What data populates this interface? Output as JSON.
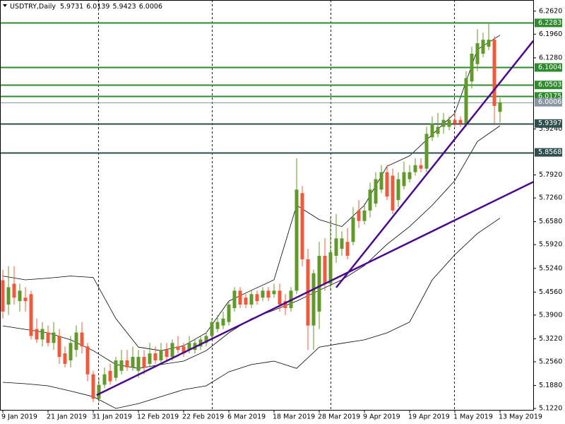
{
  "chart_data": {
    "type": "candlestick",
    "title": "USDTRY,Daily",
    "categories": [
      "9 Jan 2019",
      null,
      null,
      null,
      null,
      null,
      null,
      null,
      "21 Jan 2019",
      null,
      null,
      null,
      null,
      null,
      null,
      null,
      "31 Jan 2019",
      null,
      null,
      null,
      null,
      null,
      null,
      null,
      "12 Feb 2019",
      null,
      null,
      null,
      null,
      null,
      null,
      null,
      "22 Feb 2019",
      null,
      null,
      null,
      null,
      null,
      null,
      null,
      "6 Mar 2019",
      null,
      null,
      null,
      null,
      null,
      null,
      null,
      "18 Mar 2019",
      null,
      null,
      null,
      null,
      null,
      null,
      null,
      "28 Mar 2019",
      null,
      null,
      null,
      null,
      null,
      null,
      null,
      "9 Apr 2019",
      null,
      null,
      null,
      null,
      null,
      null,
      null,
      "19 Apr 2019",
      null,
      null,
      null,
      null,
      null,
      null,
      null,
      "1 May 2019",
      null,
      null,
      null,
      null,
      null,
      null,
      null,
      "13 May 2019"
    ],
    "open": [
      5.49,
      5.42,
      5.48,
      5.43,
      5.44,
      5.45,
      5.35,
      5.32,
      5.34,
      5.31,
      5.33,
      5.28,
      5.26,
      5.29,
      5.34,
      5.3,
      5.22,
      5.15,
      5.19,
      5.23,
      5.21,
      5.23,
      5.26,
      5.24,
      5.23,
      5.27,
      5.25,
      5.28,
      5.26,
      5.29,
      5.27,
      5.3,
      5.3,
      5.29,
      5.29,
      5.3,
      5.31,
      5.33,
      5.35,
      5.36,
      5.37,
      5.41,
      5.46,
      5.44,
      5.42,
      5.45,
      5.44,
      5.46,
      5.45,
      5.46,
      5.43,
      5.41,
      5.46,
      5.74,
      5.55,
      5.36,
      5.4,
      5.56,
      5.48,
      5.56,
      5.58,
      5.6,
      5.6,
      5.69,
      5.66,
      5.69,
      5.71,
      5.75,
      5.8,
      5.79,
      5.72,
      5.76,
      5.78,
      5.8,
      5.82,
      5.81,
      5.9,
      5.91,
      5.93,
      5.93,
      5.95,
      5.95,
      5.94,
      6.06,
      6.11,
      6.14,
      6.16,
      6.18,
      5.9731
    ],
    "high": [
      5.52,
      5.53,
      5.53,
      5.48,
      5.47,
      5.46,
      5.38,
      5.37,
      5.36,
      5.37,
      5.35,
      5.3,
      5.33,
      5.36,
      5.37,
      5.31,
      5.23,
      5.21,
      5.24,
      5.25,
      5.27,
      5.29,
      5.29,
      5.3,
      5.29,
      5.29,
      5.31,
      5.3,
      5.31,
      5.31,
      5.32,
      5.33,
      5.31,
      5.33,
      5.32,
      5.33,
      5.34,
      5.38,
      5.39,
      5.4,
      5.43,
      5.47,
      5.47,
      5.45,
      5.46,
      5.46,
      5.47,
      5.47,
      5.48,
      5.48,
      5.45,
      5.47,
      5.84,
      5.76,
      5.58,
      5.52,
      5.6,
      5.61,
      5.67,
      5.68,
      5.63,
      5.64,
      5.7,
      5.72,
      5.71,
      5.77,
      5.8,
      5.82,
      5.82,
      5.81,
      5.8,
      5.83,
      5.82,
      5.84,
      5.84,
      5.93,
      5.96,
      5.97,
      5.97,
      5.96,
      5.97,
      5.96,
      6.09,
      6.16,
      6.21,
      6.2,
      6.23,
      6.19,
      6.0139
    ],
    "low": [
      5.38,
      5.39,
      5.42,
      5.4,
      5.4,
      5.32,
      5.31,
      5.3,
      5.3,
      5.29,
      5.25,
      5.24,
      5.24,
      5.27,
      5.28,
      5.2,
      5.14,
      5.14,
      5.18,
      5.19,
      5.2,
      5.22,
      5.23,
      5.23,
      5.21,
      5.22,
      5.24,
      5.25,
      5.25,
      5.26,
      5.26,
      5.28,
      5.27,
      5.28,
      5.28,
      5.29,
      5.3,
      5.32,
      5.34,
      5.35,
      5.36,
      5.4,
      5.41,
      5.41,
      5.41,
      5.42,
      5.43,
      5.43,
      5.44,
      5.4,
      5.39,
      5.4,
      5.45,
      5.53,
      5.29,
      5.29,
      5.35,
      5.46,
      5.46,
      5.54,
      5.56,
      5.55,
      5.59,
      5.64,
      5.65,
      5.67,
      5.7,
      5.74,
      5.72,
      5.68,
      5.7,
      5.75,
      5.77,
      5.79,
      5.8,
      5.8,
      5.89,
      5.9,
      5.91,
      5.92,
      5.93,
      5.93,
      5.93,
      6.04,
      6.09,
      6.13,
      6.15,
      5.94,
      5.9423
    ],
    "close": [
      5.4,
      5.47,
      5.44,
      5.46,
      5.43,
      5.33,
      5.32,
      5.35,
      5.31,
      5.34,
      5.27,
      5.25,
      5.31,
      5.34,
      5.3,
      5.22,
      5.15,
      5.19,
      5.22,
      5.2,
      5.26,
      5.26,
      5.24,
      5.27,
      5.27,
      5.24,
      5.28,
      5.26,
      5.29,
      5.27,
      5.31,
      5.29,
      5.28,
      5.31,
      5.31,
      5.32,
      5.33,
      5.37,
      5.37,
      5.38,
      5.42,
      5.46,
      5.42,
      5.42,
      5.45,
      5.43,
      5.46,
      5.44,
      5.46,
      5.42,
      5.41,
      5.46,
      5.75,
      5.55,
      5.36,
      5.51,
      5.56,
      5.48,
      5.57,
      5.61,
      5.61,
      5.56,
      5.67,
      5.66,
      5.69,
      5.75,
      5.78,
      5.8,
      5.73,
      5.69,
      5.78,
      5.8,
      5.8,
      5.82,
      5.81,
      5.91,
      5.94,
      5.93,
      5.95,
      5.95,
      5.94,
      5.94,
      6.07,
      6.14,
      6.17,
      6.18,
      6.18,
      5.99,
      6.0006
    ],
    "up_color": "#5f9a2b",
    "down_color": "#ef5a3c",
    "overlay_x": [
      0,
      4,
      8,
      12,
      16,
      20,
      24,
      28,
      32,
      36,
      40,
      44,
      48,
      52,
      56,
      60,
      64,
      68,
      72,
      76,
      80,
      84,
      88
    ],
    "overlays": [
      {
        "color": "#000000",
        "values": [
          5.502,
          5.491,
          5.496,
          5.502,
          5.498,
          5.38,
          5.298,
          5.288,
          5.302,
          5.339,
          5.43,
          5.461,
          5.491,
          5.705,
          5.664,
          5.644,
          5.705,
          5.817,
          5.847,
          5.908,
          5.969,
          6.152,
          6.193
        ]
      },
      {
        "color": "#000000",
        "values": [
          5.359,
          5.349,
          5.339,
          5.319,
          5.288,
          5.248,
          5.237,
          5.248,
          5.258,
          5.288,
          5.339,
          5.38,
          5.404,
          5.43,
          5.461,
          5.491,
          5.532,
          5.593,
          5.644,
          5.705,
          5.776,
          5.888,
          5.933
        ]
      },
      {
        "color": "#000000",
        "values": [
          5.197,
          5.193,
          5.187,
          5.172,
          5.156,
          5.122,
          5.136,
          5.156,
          5.176,
          5.187,
          5.227,
          5.248,
          5.258,
          5.237,
          5.298,
          5.309,
          5.319,
          5.339,
          5.37,
          5.491,
          5.563,
          5.624,
          5.668
        ]
      }
    ],
    "trendlines": [
      {
        "color": "#4b0a8c",
        "x": [
          16.6,
          93.9
        ],
        "values": [
          5.1604,
          5.772
        ]
      },
      {
        "color": "#4b0a8c",
        "x": [
          59,
          93.9
        ],
        "values": [
          5.469,
          6.177
        ]
      }
    ],
    "levels": [
      {
        "value": 6.2283,
        "color": "#2e8b2e"
      },
      {
        "value": 6.1004,
        "color": "#2e8b2e"
      },
      {
        "value": 6.0503,
        "color": "#2e8b2e"
      },
      {
        "value": 6.0175,
        "color": "#2e8b2e"
      },
      {
        "value": 6.0006,
        "color": "#8a96a3"
      },
      {
        "value": 5.9397,
        "color": "#2f4f4f"
      },
      {
        "value": 5.8568,
        "color": "#2f4f4f"
      }
    ],
    "ylim": [
      5.118,
      6.294
    ],
    "yticks": [
      {
        "value": 6.262,
        "label": "6.2620"
      },
      {
        "value": 6.196,
        "label": "6.1960"
      },
      {
        "value": 6.128,
        "label": "6.1280"
      },
      {
        "value": 5.924,
        "label": "5.9240"
      },
      {
        "value": 5.792,
        "label": "5.7920"
      },
      {
        "value": 5.726,
        "label": "5.7260"
      },
      {
        "value": 5.658,
        "label": "5.6580"
      },
      {
        "value": 5.592,
        "label": "5.5920"
      },
      {
        "value": 5.524,
        "label": "5.5240"
      },
      {
        "value": 5.456,
        "label": "5.4560"
      },
      {
        "value": 5.39,
        "label": "5.3900"
      },
      {
        "value": 5.322,
        "label": "5.3220"
      },
      {
        "value": 5.256,
        "label": "5.2560"
      },
      {
        "value": 5.188,
        "label": "5.1880"
      },
      {
        "value": 5.122,
        "label": "5.1220"
      }
    ]
  }
}
